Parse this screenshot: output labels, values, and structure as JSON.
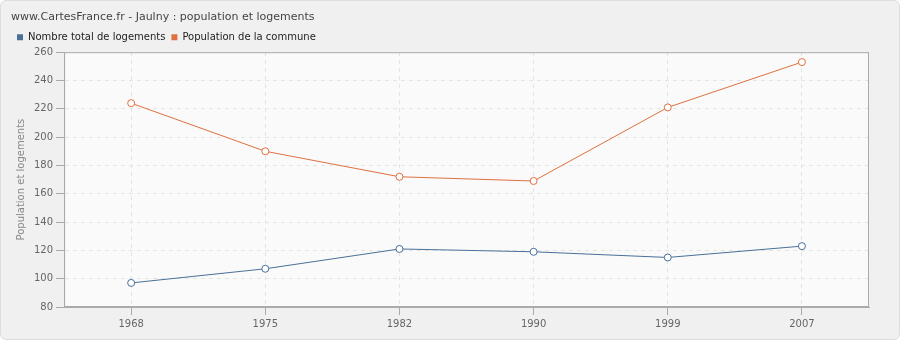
{
  "chart_data": {
    "type": "line",
    "title": "www.CartesFrance.fr - Jaulny : population et logements",
    "y_label": "Population et logements",
    "categories": [
      "1968",
      "1975",
      "1982",
      "1990",
      "1999",
      "2007"
    ],
    "series": [
      {
        "name": "Nombre total de logements",
        "color": "#4a7099",
        "values": [
          97,
          107,
          121,
          119,
          115,
          123
        ]
      },
      {
        "name": "Population de la commune",
        "color": "#e0703f",
        "values": [
          224,
          190,
          172,
          169,
          221,
          253
        ]
      }
    ],
    "ylim": [
      80,
      260
    ],
    "yticks": [
      80,
      100,
      120,
      140,
      160,
      180,
      200,
      220,
      240,
      260
    ],
    "grid": true,
    "legend": "top-left",
    "marker": "circle"
  }
}
